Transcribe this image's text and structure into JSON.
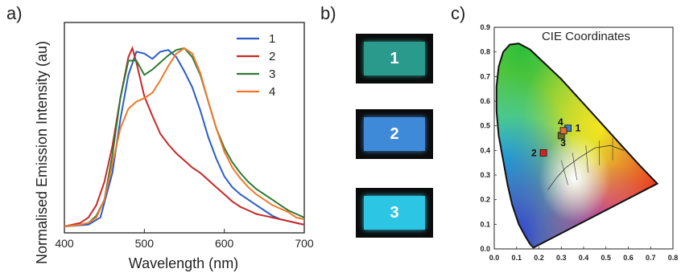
{
  "panels": {
    "a": "a)",
    "b": "b)",
    "c": "c)"
  },
  "chart_data": [
    {
      "type": "line",
      "title": "",
      "xlabel": "Wavelength (nm)",
      "ylabel": "Normalised Emission Intensity (au)",
      "xlim": [
        400,
        700
      ],
      "xticks": [
        400,
        500,
        600,
        700
      ],
      "legend_position": "top-right",
      "series": [
        {
          "name": "1",
          "color": "#2a5cc8",
          "x": [
            400,
            430,
            445,
            460,
            470,
            480,
            490,
            500,
            510,
            520,
            530,
            540,
            550,
            560,
            570,
            580,
            590,
            600,
            610,
            620,
            630,
            640,
            650,
            660,
            670,
            680,
            690,
            700
          ],
          "y": [
            0.0,
            0.01,
            0.05,
            0.3,
            0.6,
            0.85,
            0.98,
            0.97,
            0.94,
            0.98,
            0.99,
            0.95,
            0.87,
            0.78,
            0.65,
            0.5,
            0.38,
            0.28,
            0.22,
            0.18,
            0.15,
            0.12,
            0.09,
            0.06,
            0.04,
            0.03,
            0.02,
            0.01
          ]
        },
        {
          "name": "2",
          "color": "#c8282a",
          "x": [
            400,
            420,
            430,
            440,
            450,
            460,
            470,
            480,
            485,
            490,
            500,
            510,
            520,
            530,
            540,
            550,
            560,
            570,
            580,
            590,
            600,
            610,
            620,
            630,
            640,
            650,
            660,
            670,
            680,
            690,
            700
          ],
          "y": [
            0.0,
            0.02,
            0.05,
            0.12,
            0.25,
            0.45,
            0.72,
            0.95,
            1.0,
            0.92,
            0.73,
            0.62,
            0.52,
            0.46,
            0.41,
            0.37,
            0.33,
            0.3,
            0.26,
            0.22,
            0.18,
            0.14,
            0.11,
            0.09,
            0.07,
            0.06,
            0.05,
            0.04,
            0.03,
            0.02,
            0.01
          ]
        },
        {
          "name": "3",
          "color": "#2e7a32",
          "x": [
            400,
            420,
            430,
            440,
            450,
            460,
            470,
            480,
            490,
            500,
            510,
            520,
            530,
            540,
            550,
            560,
            570,
            580,
            590,
            600,
            610,
            620,
            630,
            640,
            650,
            660,
            670,
            680,
            690,
            700
          ],
          "y": [
            0.0,
            0.01,
            0.02,
            0.06,
            0.15,
            0.4,
            0.72,
            0.93,
            0.93,
            0.85,
            0.88,
            0.92,
            0.96,
            0.99,
            1.0,
            0.95,
            0.85,
            0.7,
            0.55,
            0.44,
            0.36,
            0.3,
            0.25,
            0.21,
            0.18,
            0.15,
            0.12,
            0.09,
            0.07,
            0.05
          ]
        },
        {
          "name": "4",
          "color": "#f0782a",
          "x": [
            400,
            420,
            430,
            440,
            450,
            460,
            470,
            480,
            490,
            500,
            510,
            520,
            530,
            540,
            550,
            560,
            570,
            580,
            590,
            600,
            610,
            620,
            630,
            640,
            650,
            660,
            670,
            680,
            690,
            700
          ],
          "y": [
            0.0,
            0.01,
            0.02,
            0.05,
            0.15,
            0.35,
            0.55,
            0.66,
            0.7,
            0.72,
            0.75,
            0.82,
            0.9,
            0.97,
            1.0,
            0.97,
            0.86,
            0.7,
            0.55,
            0.42,
            0.33,
            0.27,
            0.22,
            0.18,
            0.15,
            0.12,
            0.1,
            0.08,
            0.05,
            0.04
          ]
        }
      ]
    },
    {
      "type": "scatter",
      "title": "CIE Coordinates",
      "xlim": [
        0.0,
        0.8
      ],
      "ylim": [
        0.0,
        0.9
      ],
      "xticks": [
        0.0,
        0.1,
        0.2,
        0.3,
        0.4,
        0.5,
        0.6,
        0.7,
        0.8
      ],
      "yticks": [
        0.0,
        0.1,
        0.2,
        0.3,
        0.4,
        0.5,
        0.6,
        0.7,
        0.8,
        0.9
      ],
      "points": [
        {
          "label": "1",
          "x": 0.33,
          "y": 0.49,
          "color": "#3a7fd0"
        },
        {
          "label": "2",
          "x": 0.22,
          "y": 0.39,
          "color": "#e02020"
        },
        {
          "label": "3",
          "x": 0.3,
          "y": 0.46,
          "color": "#6b6b2a"
        },
        {
          "label": "4",
          "x": 0.31,
          "y": 0.48,
          "color": "#e07030"
        }
      ]
    }
  ],
  "devices": [
    {
      "label": "1",
      "color": "#2a9a8c"
    },
    {
      "label": "2",
      "color": "#3f8ad8"
    },
    {
      "label": "3",
      "color": "#2cc6e4"
    }
  ]
}
